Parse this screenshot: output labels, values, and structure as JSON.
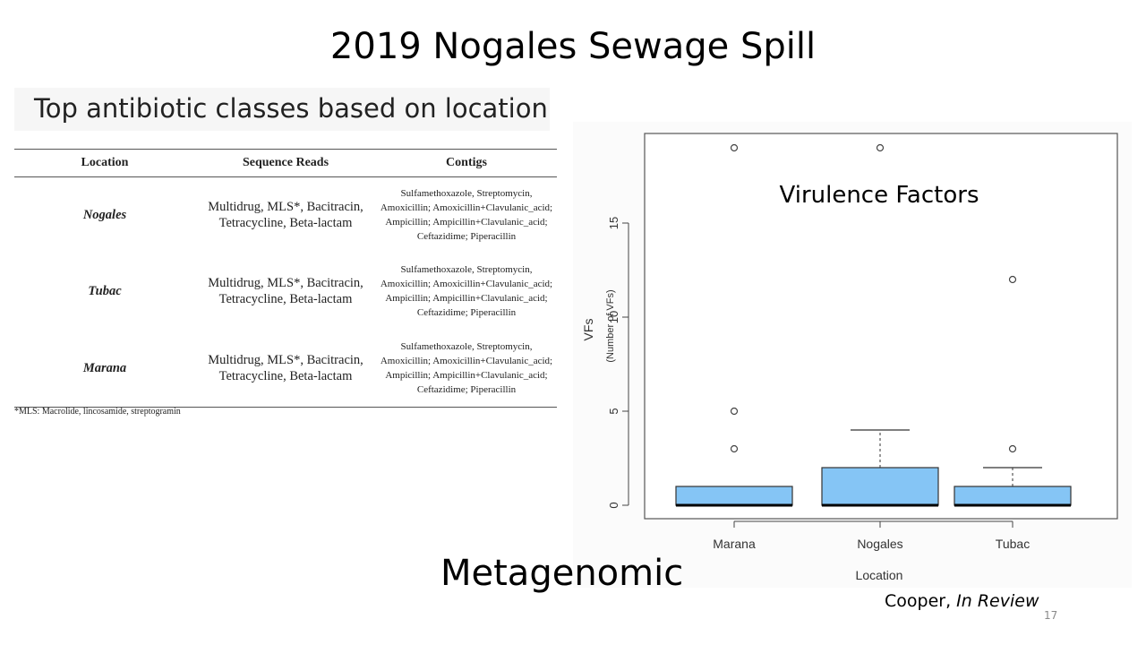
{
  "slide": {
    "title": "2019 Nogales Sewage Spill",
    "subtitle": "Metagenomic",
    "citation_author": "Cooper,",
    "citation_status": "In Review",
    "page_number": "17"
  },
  "table": {
    "heading": "Top antibiotic classes based on location",
    "columns": [
      "Location",
      "Sequence Reads",
      "Contigs"
    ],
    "rows": [
      {
        "location": "Nogales",
        "reads_line1": "Multidrug, MLS*, Bacitracin,",
        "reads_line2": "Tetracycline, Beta-lactam",
        "contigs_lines": [
          "Sulfamethoxazole, Streptomycin,",
          "Amoxicillin; Amoxicillin+Clavulanic_acid;",
          "Ampicillin; Ampicillin+Clavulanic_acid;",
          "Ceftazidime; Piperacillin"
        ]
      },
      {
        "location": "Tubac",
        "reads_line1": "Multidrug, MLS*, Bacitracin,",
        "reads_line2": "Tetracycline, Beta-lactam",
        "contigs_lines": [
          "Sulfamethoxazole, Streptomycin,",
          "Amoxicillin; Amoxicillin+Clavulanic_acid;",
          "Ampicillin; Ampicillin+Clavulanic_acid;",
          "Ceftazidime; Piperacillin"
        ]
      },
      {
        "location": "Marana",
        "reads_line1": "Multidrug, MLS*, Bacitracin,",
        "reads_line2": "Tetracycline, Beta-lactam",
        "contigs_lines": [
          "Sulfamethoxazole, Streptomycin,",
          "Amoxicillin; Amoxicillin+Clavulanic_acid;",
          "Ampicillin; Ampicillin+Clavulanic_acid;",
          "Ceftazidime; Piperacillin"
        ]
      }
    ],
    "footnote": "*MLS: Macrolide, lincosamide, streptogramin"
  },
  "chart_data": {
    "type": "boxplot",
    "title": "Virulence Factors",
    "xlabel": "Location",
    "ylabel": "VFs",
    "ylabel_sub": "(Number of VFs)",
    "ylim": [
      0,
      19
    ],
    "yticks": [
      0,
      5,
      10,
      15
    ],
    "grid": false,
    "box_color": "#85c5f5",
    "categories": [
      "Marana",
      "Nogales",
      "Tubac"
    ],
    "boxes": [
      {
        "category": "Marana",
        "min": 0,
        "q1": 0,
        "median": 0,
        "q3": 1,
        "max": 1,
        "outliers": [
          3,
          5,
          19
        ]
      },
      {
        "category": "Nogales",
        "min": 0,
        "q1": 0,
        "median": 0,
        "q3": 2,
        "max": 4,
        "outliers": [
          19
        ]
      },
      {
        "category": "Tubac",
        "min": 0,
        "q1": 0,
        "median": 0,
        "q3": 1,
        "max": 2,
        "outliers": [
          3,
          12
        ]
      }
    ]
  }
}
